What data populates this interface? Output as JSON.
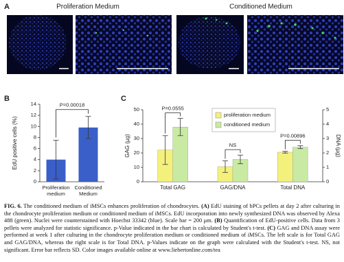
{
  "panel_a": {
    "letter": "A",
    "headers": [
      "Proliferation Medium",
      "Conditioned Medium"
    ]
  },
  "chart_data": [
    {
      "type": "bar",
      "letter": "B",
      "ylabel": "EdU positive cells (%)",
      "categories": [
        "Proliferation medium",
        "Conditioned Medium"
      ],
      "values": [
        4.0,
        9.8
      ],
      "errors": [
        3.5,
        2.0
      ],
      "color": "#3a5fc8",
      "ylim": [
        0,
        14
      ],
      "yticks": [
        0,
        2,
        4,
        6,
        8,
        10,
        12,
        14
      ],
      "annotation": "P=0.00018"
    },
    {
      "type": "grouped-bar",
      "letter": "C",
      "ylabel": "GAG (µg)",
      "y2label": "DNA (µg)",
      "categories": [
        "Total GAG",
        "GAG/DNA",
        "Total DNA"
      ],
      "category_axis": [
        "y",
        "y",
        "y2"
      ],
      "series": [
        {
          "name": "proliferation medium",
          "color": "#f4f07c",
          "values": [
            22,
            10.5,
            2.05
          ],
          "errors": [
            10,
            4,
            0.06
          ]
        },
        {
          "name": "conditioned medium",
          "color": "#c9eaa2",
          "values": [
            38,
            15.5,
            2.4
          ],
          "errors": [
            6,
            3,
            0.1
          ]
        }
      ],
      "ylim": [
        0,
        50
      ],
      "yticks": [
        0,
        10,
        20,
        30,
        40,
        50
      ],
      "y2lim": [
        0,
        5
      ],
      "y2ticks": [
        0,
        1,
        2,
        3,
        4,
        5
      ],
      "annotations": [
        "P=0.0555",
        "NS",
        "P=0.00896"
      ],
      "legend": "top-center"
    }
  ],
  "caption": [
    {
      "text": "FIG. 6.",
      "bold": true
    },
    {
      "text": " The conditioned medium of iMSCs enhances proliferation of chondrocytes. "
    },
    {
      "text": "(A)",
      "bold": true
    },
    {
      "text": " EdU staining of bPCs pellets at day 2 after culturing in the chondrocyte proliferation medium or conditioned medium of iMSCs. EdU incorporation into newly synthesized DNA was observed by Alexa 488 (green). Nuclei were counterstained with Hoechst 33342 (blue). Scale bar = 200 μm. "
    },
    {
      "text": "(B)",
      "bold": true
    },
    {
      "text": " Quantification of EdU-positive cells. Data from 3 pellets were analyzed for statistic significance. p-Value indicated in the bar chart is calculated by Student's t-test. "
    },
    {
      "text": "(C)",
      "bold": true
    },
    {
      "text": " GAG and DNA assay were performed at week 1 after culturing in the chondrocyte proliferation medium or conditioned medium of iMSCs. The left scale is for Total GAG and GAG/DNA, whereas the right scale is for Total DNA. p-Values indicate on the graph were calculated with the Student's t-test. NS, not significant. Error bar reflects SD. Color images available online at www.liebertonline.com/tea"
    }
  ]
}
